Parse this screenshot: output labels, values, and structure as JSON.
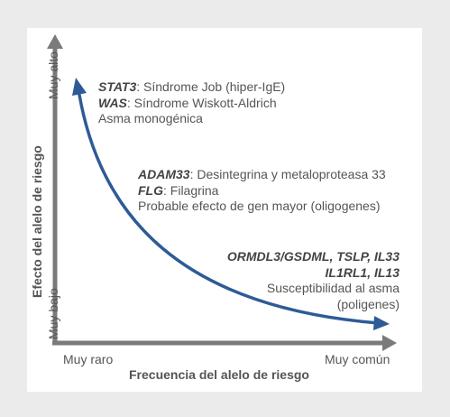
{
  "axes": {
    "x_title": "Frecuencia del alelo de riesgo",
    "y_title": "Efecto del alelo de riesgo",
    "x_low": "Muy raro",
    "x_high": "Muy común",
    "y_low": "Muy bajo",
    "y_high": "Muy alto"
  },
  "groups": {
    "monogenic": {
      "line1_gene": "STAT3",
      "line1_text": ": Síndrome Job (hiper-IgE)",
      "line2_gene": "WAS",
      "line2_text": ": Síndrome Wiskott-Aldrich",
      "line3_text": "Asma monogénica"
    },
    "oligogenic": {
      "line1_gene": "ADAM33",
      "line1_text": ": Desintegrina y metaloproteasa 33",
      "line2_gene": "FLG",
      "line2_text": ": Filagrina",
      "line3_text": "Probable efecto de gen mayor (oligogenes)"
    },
    "polygenic": {
      "line1_genes": "ORMDL3/GSDML, TSLP, IL33",
      "line2_genes": "IL1RL1, IL13",
      "line3_text": "Susceptibilidad al asma",
      "line4_text": "(poligenes)"
    }
  },
  "colors": {
    "curve": "#2e5b96",
    "axis": "#7a7a7a",
    "background": "#ebebeb"
  }
}
